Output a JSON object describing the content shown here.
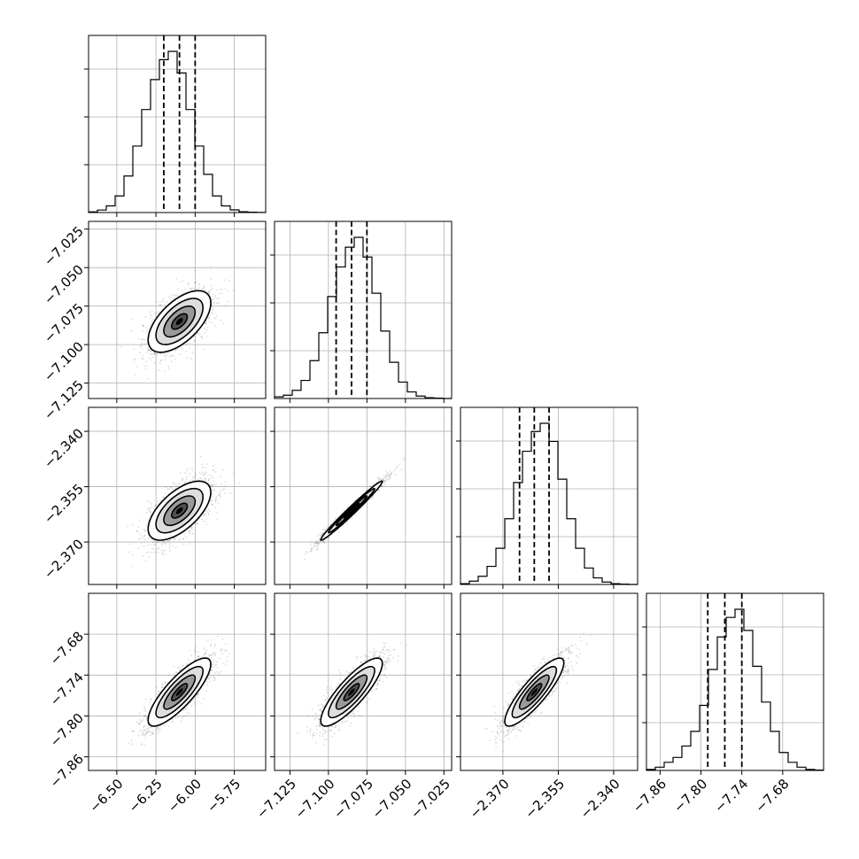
{
  "chart_data": {
    "type": "scatter",
    "title": "",
    "params": [
      {
        "mean": -6.1,
        "sd": 0.1,
        "lo": -6.2,
        "median": -6.1,
        "hi": -6.0,
        "range": [
          -6.68,
          -5.55
        ],
        "ticks": [
          -6.5,
          -6.25,
          -6.0,
          -5.75
        ],
        "tick_labels": [
          "−6.50",
          "−6.25",
          "−6.00",
          "−5.75"
        ]
      },
      {
        "mean": -7.085,
        "sd": 0.01,
        "lo": -7.095,
        "median": -7.085,
        "hi": -7.075,
        "range": [
          -7.135,
          -7.02
        ],
        "ticks": [
          -7.125,
          -7.1,
          -7.075,
          -7.05,
          -7.025
        ],
        "tick_labels": [
          "−7.125",
          "−7.100",
          "−7.075",
          "−7.050",
          "−7.025"
        ]
      },
      {
        "mean": -2.3615,
        "sd": 0.004,
        "lo": -2.3655,
        "median": -2.3615,
        "hi": -2.3575,
        "range": [
          -2.3815,
          -2.3335
        ],
        "ticks": [
          -2.37,
          -2.355,
          -2.34
        ],
        "tick_labels": [
          "−2.370",
          "−2.355",
          "−2.340"
        ]
      },
      {
        "mean": -7.765,
        "sd": 0.025,
        "lo": -7.79,
        "median": -7.765,
        "hi": -7.74,
        "range": [
          -7.88,
          -7.62
        ],
        "ticks": [
          -7.86,
          -7.8,
          -7.74,
          -7.68
        ],
        "tick_labels": [
          "−7.86",
          "−7.80",
          "−7.74",
          "−7.68"
        ]
      }
    ],
    "histograms": [
      {
        "bin_range": [
          -6.68,
          -5.55
        ],
        "counts": [
          0.4,
          1.5,
          4,
          10,
          22,
          40,
          62,
          80,
          92,
          97,
          84,
          62,
          40,
          23,
          10,
          4,
          1.6,
          0.5,
          0.2,
          0.1
        ]
      },
      {
        "bin_range": [
          -7.135,
          -7.02
        ],
        "counts": [
          1,
          2,
          5,
          11,
          23,
          40,
          62,
          80,
          92,
          98,
          86,
          64,
          41,
          22,
          10,
          4,
          1.5,
          0.5,
          0.2,
          0
        ]
      },
      {
        "bin_range": [
          -2.3815,
          -2.3335
        ],
        "counts": [
          0.5,
          2,
          5,
          11,
          22,
          40,
          62,
          81,
          93,
          98,
          87,
          64,
          40,
          22,
          10,
          4,
          1.5,
          0.5,
          0.2,
          0
        ]
      },
      {
        "bin_range": [
          -7.88,
          -7.62
        ],
        "counts": [
          0.6,
          2,
          5,
          8,
          15,
          24,
          40,
          62,
          82,
          94,
          99,
          86,
          64,
          42,
          24,
          11,
          5,
          2,
          0.6,
          0.2
        ]
      }
    ],
    "correlations": {
      "1-0": 0.6,
      "2-0": 0.62,
      "2-1": 0.985,
      "3-0": 0.82,
      "3-1": 0.84,
      "3-2": 0.86
    },
    "sigma_levels": [
      0.5,
      1.0,
      1.5,
      2.0
    ],
    "grid": true,
    "colors": {
      "line": "#000000",
      "points": "#444444",
      "grid": "#b0b0b0"
    }
  }
}
